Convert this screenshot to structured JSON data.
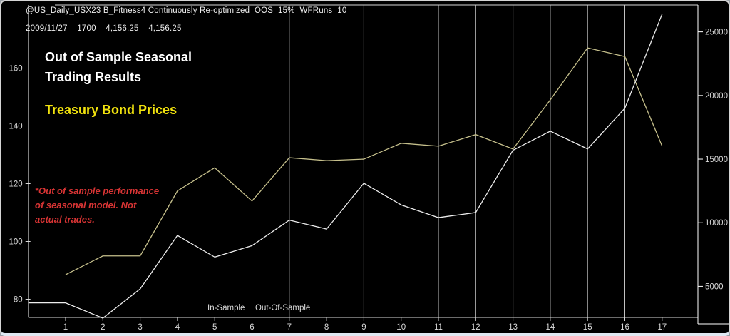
{
  "window": {
    "header_line1": "@US_Daily_USX23 B_Fitness4 Continuously Re-optimized  OOS=15%  WFRuns=10",
    "header_line2": "2009/11/27    1700    4,156.25    4,156.25"
  },
  "annotations": {
    "title_line1": "Out of Sample Seasonal",
    "title_line2": "Trading Results",
    "subtitle": "Treasury Bond Prices",
    "note_line1": "*Out of sample performance",
    "note_line2": "of seasonal model. Not",
    "note_line3": "actual trades.",
    "in_sample_label": "In-Sample",
    "out_of_sample_label": "Out-Of-Sample"
  },
  "colors": {
    "background": "#000000",
    "title_text": "#ffffff",
    "subtitle_yellow": "#f2e30e",
    "note_red": "#d83434",
    "axis_text": "#d9d9d9",
    "grid_line": "#c2c2c2",
    "axis_line": "#d8d8d8",
    "yellow_series": "#c6c08c",
    "white_series": "#ededed"
  },
  "chart_data": {
    "type": "line",
    "title": "Out of Sample Seasonal Trading Results",
    "subtitle": "Treasury Bond Prices",
    "x_ticks": [
      1,
      2,
      3,
      4,
      5,
      6,
      7,
      8,
      9,
      10,
      11,
      12,
      13,
      14,
      15,
      16,
      17
    ],
    "left_axis": {
      "ticks": [
        80,
        100,
        120,
        140,
        160
      ],
      "range": [
        74,
        181
      ]
    },
    "right_axis": {
      "ticks": [
        5000,
        10000,
        15000,
        20000,
        25000
      ],
      "range": [
        2500,
        27000
      ]
    },
    "vertical_gridlines_at_x": [
      6,
      7,
      9,
      11,
      12,
      13,
      14,
      15,
      16
    ],
    "in_sample_region_end_x": 6,
    "grid": "vertical-only",
    "legend_position": "none",
    "series": [
      {
        "name": "bond-price-yellow",
        "axis": "left",
        "color_key": "yellow_series",
        "x": [
          1,
          2,
          3,
          4,
          5,
          6,
          7,
          8,
          9,
          10,
          11,
          12,
          13,
          14,
          15,
          16,
          17
        ],
        "values": [
          88.5,
          95,
          95,
          117.5,
          125.5,
          114,
          129,
          128,
          128.5,
          134,
          133,
          137,
          132,
          149,
          167,
          164,
          133
        ]
      },
      {
        "name": "equity-white",
        "axis": "right",
        "color_key": "white_series",
        "x": [
          0,
          1,
          2,
          3,
          4,
          5,
          6,
          7,
          8,
          9,
          10,
          11,
          12,
          13,
          14,
          15,
          16,
          17
        ],
        "values": [
          3700,
          3700,
          2500,
          4800,
          9000,
          7300,
          8200,
          10200,
          9500,
          13100,
          11400,
          10400,
          10800,
          15700,
          17200,
          15800,
          19000,
          26400
        ]
      }
    ]
  }
}
